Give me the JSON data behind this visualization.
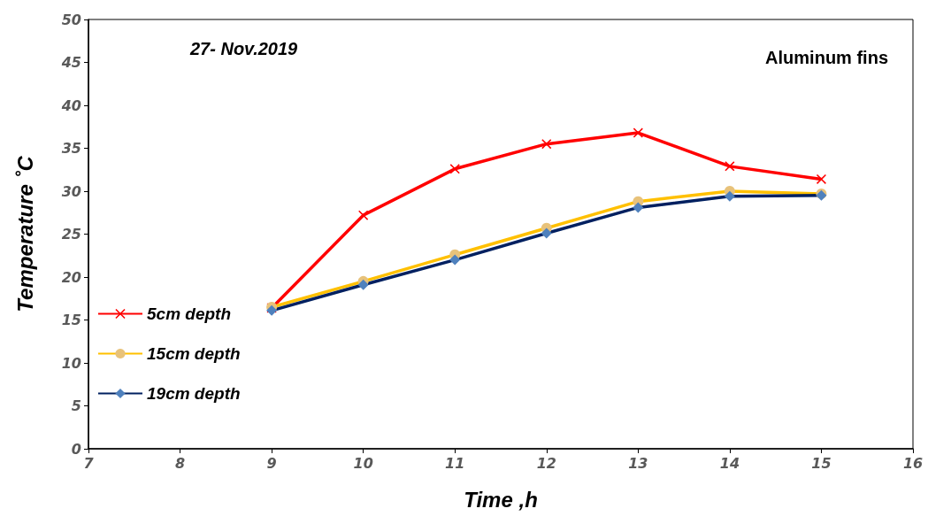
{
  "chart_data": {
    "type": "line",
    "xlabel": "Time ,h",
    "ylabel": "Temperature ˚C",
    "annotations": [
      "27- Nov.2019",
      "Aluminum fins"
    ],
    "x": [
      9,
      10,
      11,
      12,
      13,
      14,
      15
    ],
    "series": [
      {
        "name": "5cm depth",
        "color": "#ff0000",
        "marker": "cross",
        "values": [
          16.4,
          27.2,
          32.6,
          35.5,
          36.8,
          32.9,
          31.4
        ]
      },
      {
        "name": "15cm depth",
        "color": "#ffc000",
        "marker": "circle",
        "values": [
          16.5,
          19.5,
          22.6,
          25.7,
          28.8,
          30.0,
          29.7
        ]
      },
      {
        "name": "19cm depth",
        "color": "#002060",
        "marker": "diamond",
        "values": [
          16.1,
          19.1,
          22.0,
          25.1,
          28.1,
          29.4,
          29.5
        ]
      }
    ],
    "xlim": [
      7,
      16
    ],
    "xticks": [
      7,
      8,
      9,
      10,
      11,
      12,
      13,
      14,
      15,
      16
    ],
    "ylim": [
      0,
      50
    ],
    "yticks": [
      0,
      5,
      10,
      15,
      20,
      25,
      30,
      35,
      40,
      45,
      50
    ],
    "grid": false,
    "legend": "left",
    "line_style": "solid"
  }
}
